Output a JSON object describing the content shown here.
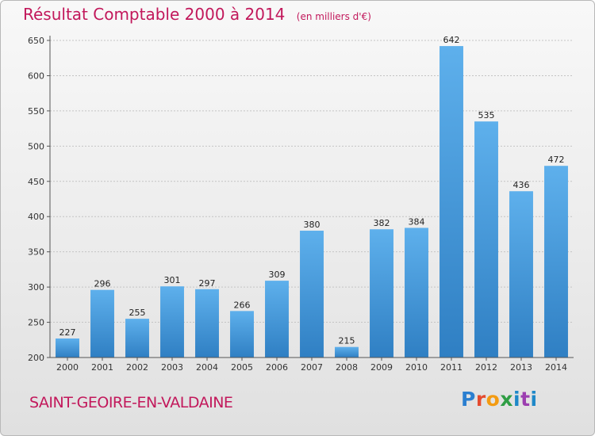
{
  "chart_data": {
    "type": "bar",
    "title": "Résultat Comptable 2000 à 2014",
    "unit": "(en milliers d'€)",
    "categories": [
      "2000",
      "2001",
      "2002",
      "2003",
      "2004",
      "2005",
      "2006",
      "2007",
      "2008",
      "2009",
      "2010",
      "2011",
      "2012",
      "2013",
      "2014"
    ],
    "values": [
      227,
      296,
      255,
      301,
      297,
      266,
      309,
      380,
      215,
      382,
      384,
      642,
      535,
      436,
      472
    ],
    "ylim": [
      200,
      650
    ],
    "yticks": [
      200,
      250,
      300,
      350,
      400,
      450,
      500,
      550,
      600,
      650
    ],
    "grid": true,
    "bar_color": "#4a9fdf",
    "label_color": "#222222",
    "axis_color": "#555555"
  },
  "footer": {
    "place": "SAINT-GEOIRE-EN-VALDAINE",
    "logo": "Proxiti"
  }
}
